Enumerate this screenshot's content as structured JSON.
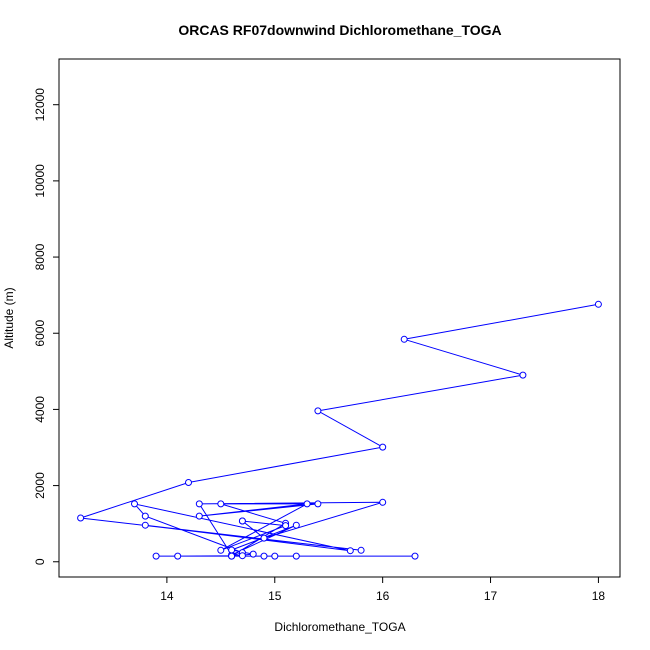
{
  "chart_data": {
    "type": "line",
    "title": "ORCAS RF07downwind Dichloromethane_TOGA",
    "xlabel": "Dichloromethane_TOGA",
    "ylabel": "Altitude (m)",
    "xlim": [
      13.0,
      18.2
    ],
    "ylim": [
      -400,
      13200
    ],
    "xticks": [
      14,
      15,
      16,
      17,
      18
    ],
    "yticks": [
      0,
      2000,
      4000,
      6000,
      8000,
      10000,
      12000
    ],
    "series_color": "#0000ff",
    "markers": "open-circle",
    "x": [
      18.0,
      16.2,
      17.3,
      15.4,
      16.0,
      14.2,
      13.2,
      15.8,
      13.8,
      15.7,
      13.7,
      13.8,
      14.7,
      14.6,
      15.1,
      14.5,
      15.4,
      14.3,
      15.3,
      14.5,
      15.1,
      14.7,
      14.7,
      14.9,
      16.0,
      14.3,
      14.6,
      15.2,
      14.6,
      14.8,
      14.6,
      14.7,
      14.1,
      15.0,
      16.3,
      13.9,
      15.2,
      14.9
    ],
    "y": [
      6760,
      5840,
      4900,
      3960,
      3010,
      2080,
      1150,
      300,
      960,
      290,
      1520,
      1200,
      240,
      150,
      1010,
      1520,
      1520,
      1200,
      1520,
      300,
      950,
      1070,
      1070,
      620,
      1560,
      1520,
      180,
      960,
      310,
      200,
      150,
      160,
      150,
      150,
      150,
      150,
      150,
      150
    ]
  }
}
